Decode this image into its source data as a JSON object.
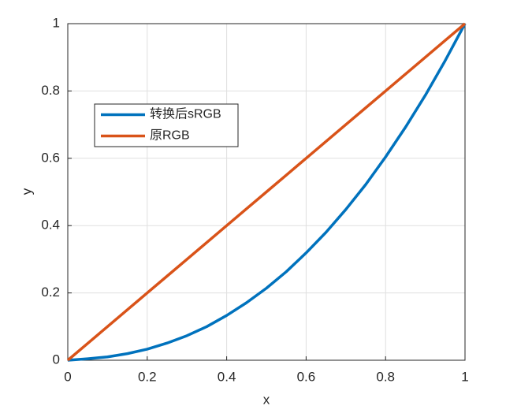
{
  "chart_data": {
    "type": "line",
    "x": [
      0,
      0.05,
      0.1,
      0.15,
      0.2,
      0.25,
      0.3,
      0.35,
      0.4,
      0.45,
      0.5,
      0.55,
      0.6,
      0.65,
      0.7,
      0.75,
      0.8,
      0.85,
      0.9,
      0.95,
      1
    ],
    "series": [
      {
        "name": "转换后sRGB",
        "color": "#0072bd",
        "values": [
          0,
          0.0044,
          0.01,
          0.0196,
          0.033,
          0.051,
          0.073,
          0.1,
          0.133,
          0.171,
          0.214,
          0.263,
          0.319,
          0.38,
          0.448,
          0.522,
          0.604,
          0.692,
          0.787,
          0.89,
          1
        ]
      },
      {
        "name": "原RGB",
        "color": "#d95319",
        "values": [
          0,
          0.05,
          0.1,
          0.15,
          0.2,
          0.25,
          0.3,
          0.35,
          0.4,
          0.45,
          0.5,
          0.55,
          0.6,
          0.65,
          0.7,
          0.75,
          0.8,
          0.85,
          0.9,
          0.95,
          1
        ]
      }
    ],
    "x_label": "x",
    "y_label": "y",
    "xlim": [
      0,
      1
    ],
    "ylim": [
      0,
      1
    ],
    "xticks": [
      0,
      0.2,
      0.4,
      0.6,
      0.8,
      1
    ],
    "yticks": [
      0,
      0.2,
      0.4,
      0.6,
      0.8,
      1
    ],
    "grid": true,
    "legend": "upper-left"
  }
}
